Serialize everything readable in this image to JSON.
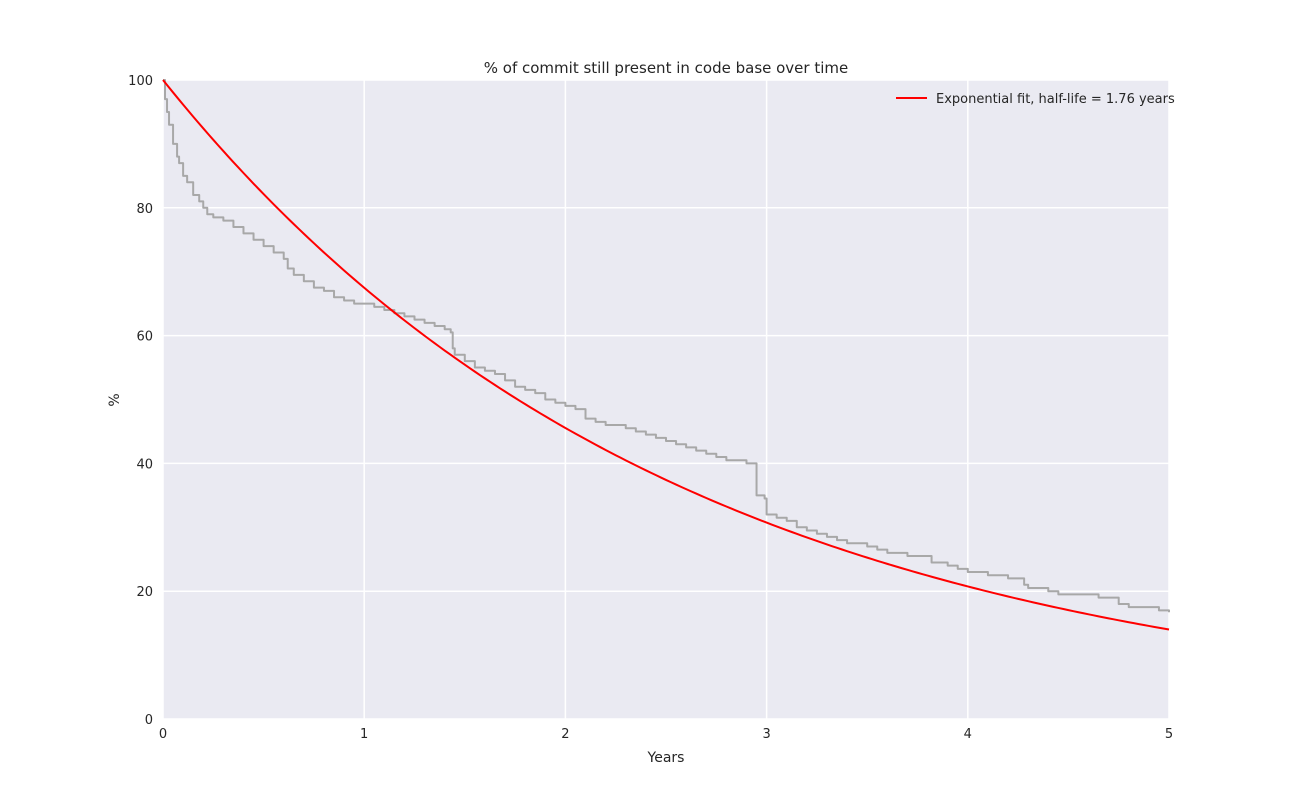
{
  "chart_data": {
    "type": "line",
    "title": "% of commit still present in code base over time",
    "xlabel": "Years",
    "ylabel": "%",
    "xlim": [
      0,
      5
    ],
    "ylim": [
      0,
      100
    ],
    "xticks": [
      "0",
      "1",
      "2",
      "3",
      "4",
      "5"
    ],
    "yticks": [
      "0",
      "20",
      "40",
      "60",
      "80",
      "100"
    ],
    "grid": true,
    "background_color": "#EAEAF2",
    "grid_color": "#FFFFFF",
    "legend_position": "top-right",
    "series": [
      {
        "name": "",
        "style": "step",
        "color": "#A8A8A8",
        "x": [
          0,
          0.01,
          0.02,
          0.03,
          0.05,
          0.07,
          0.08,
          0.1,
          0.12,
          0.15,
          0.18,
          0.2,
          0.22,
          0.25,
          0.3,
          0.35,
          0.4,
          0.45,
          0.5,
          0.55,
          0.6,
          0.62,
          0.65,
          0.7,
          0.75,
          0.8,
          0.85,
          0.9,
          0.95,
          1.0,
          1.05,
          1.1,
          1.15,
          1.2,
          1.25,
          1.3,
          1.35,
          1.4,
          1.43,
          1.44,
          1.45,
          1.5,
          1.55,
          1.6,
          1.65,
          1.7,
          1.75,
          1.8,
          1.85,
          1.9,
          1.95,
          2.0,
          2.05,
          2.1,
          2.15,
          2.2,
          2.25,
          2.3,
          2.35,
          2.4,
          2.45,
          2.5,
          2.55,
          2.6,
          2.65,
          2.7,
          2.75,
          2.78,
          2.8,
          2.85,
          2.9,
          2.94,
          2.95,
          2.99,
          3.0,
          3.05,
          3.1,
          3.15,
          3.2,
          3.25,
          3.3,
          3.35,
          3.4,
          3.5,
          3.55,
          3.6,
          3.65,
          3.7,
          3.75,
          3.8,
          3.82,
          3.85,
          3.9,
          3.95,
          4.0,
          4.05,
          4.1,
          4.15,
          4.2,
          4.25,
          4.28,
          4.3,
          4.35,
          4.4,
          4.45,
          4.5,
          4.55,
          4.6,
          4.65,
          4.7,
          4.75,
          4.8,
          4.85,
          4.9,
          4.95,
          5.0
        ],
        "y": [
          100,
          97,
          95,
          93,
          90,
          88,
          87,
          85,
          84,
          82,
          81,
          80,
          79,
          78.5,
          78,
          77,
          76,
          75,
          74,
          73,
          72,
          70.5,
          69.5,
          68.5,
          67.5,
          67,
          66,
          65.5,
          65,
          65,
          64.5,
          64,
          63.5,
          63,
          62.5,
          62,
          61.5,
          61,
          60.5,
          58,
          57,
          56,
          55,
          54.5,
          54,
          53,
          52,
          51.5,
          51,
          50,
          49.5,
          49,
          48.5,
          47,
          46.5,
          46,
          46,
          45.5,
          45,
          44.5,
          44,
          43.5,
          43,
          42.5,
          42,
          41.5,
          41,
          41,
          40.5,
          40.5,
          40,
          40,
          35,
          34.5,
          32,
          31.5,
          31,
          30,
          29.5,
          29,
          28.5,
          28,
          27.5,
          27,
          26.5,
          26,
          26,
          25.5,
          25.5,
          25.5,
          24.5,
          24.5,
          24,
          23.5,
          23,
          23,
          22.5,
          22.5,
          22,
          22,
          21,
          20.5,
          20.5,
          20,
          19.5,
          19.5,
          19.5,
          19.5,
          19,
          19,
          18,
          17.5,
          17.5,
          17.5,
          17,
          16.7
        ]
      },
      {
        "name": "Exponential fit, half-life = 1.76 years",
        "style": "line",
        "color": "#FF0000",
        "x": [
          0,
          0.25,
          0.5,
          0.75,
          1.0,
          1.25,
          1.5,
          1.75,
          2.0,
          2.25,
          2.5,
          2.75,
          3.0,
          3.25,
          3.5,
          3.75,
          4.0,
          4.25,
          4.5,
          4.75,
          5.0
        ],
        "y": [
          100,
          90.6,
          82.1,
          74.4,
          67.4,
          61.1,
          55.4,
          50.2,
          45.5,
          41.2,
          37.4,
          33.9,
          30.7,
          27.8,
          25.2,
          22.8,
          20.7,
          18.8,
          17.0,
          15.4,
          14.0
        ]
      }
    ]
  }
}
